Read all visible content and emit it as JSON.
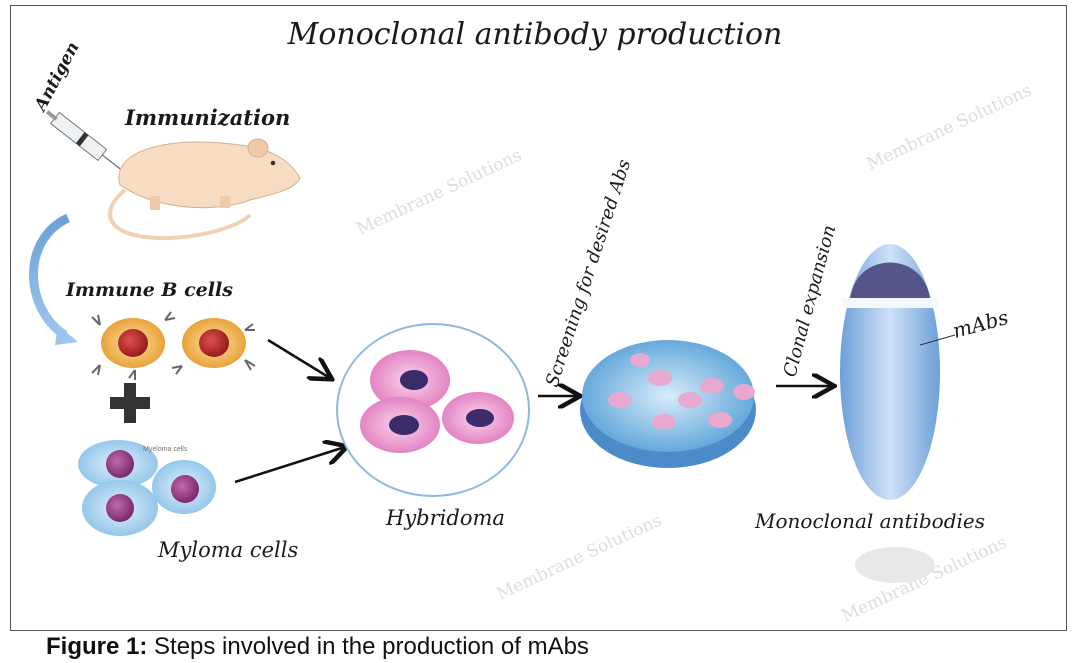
{
  "title": "Monoclonal antibody production",
  "labels": {
    "antigen": "Antigen",
    "immunization": "Immunization",
    "immune_b_cells": "Immune  B cells",
    "myeloma_small": "Myeloma cells",
    "myloma_cells": "Myloma cells",
    "hybridoma": "Hybridoma",
    "screening": "Screening for desired Abs",
    "clonal_expansion": "Clonal expansion",
    "mabs": "mAbs",
    "monoclonal_antibodies": "Monoclonal antibodies"
  },
  "watermark": "Membrane Solutions",
  "caption": {
    "prefix": "Figure 1:",
    "text": " Steps involved in the production of mAbs"
  }
}
